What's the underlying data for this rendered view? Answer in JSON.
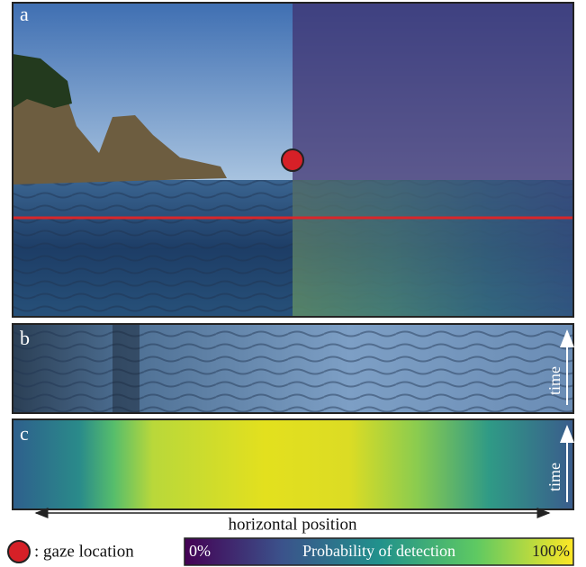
{
  "panels": {
    "a": {
      "label": "a"
    },
    "b": {
      "label": "b",
      "axis_label": "time"
    },
    "c": {
      "label": "c",
      "axis_label": "time"
    }
  },
  "x_axis_label": "horizontal position",
  "legend": {
    "gaze": ": gaze location",
    "colorbar_min": "0%",
    "colorbar_title": "Probability of detection",
    "colorbar_max": "100%"
  }
}
